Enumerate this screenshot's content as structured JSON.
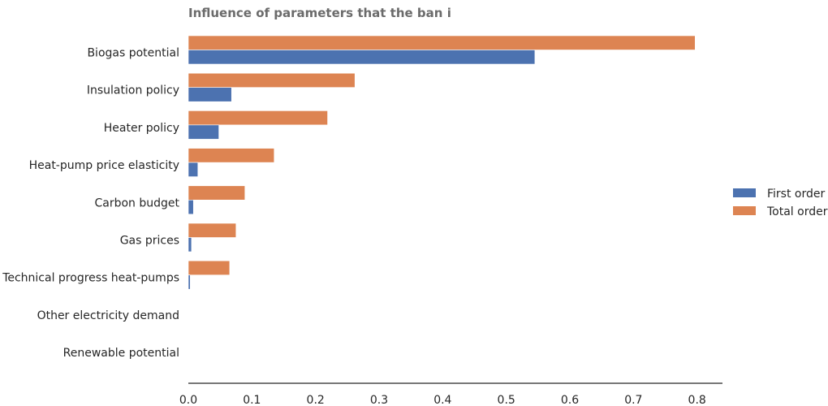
{
  "chart_data": {
    "type": "bar",
    "orientation": "horizontal",
    "title": "Influence of parameters that the ban i",
    "xlabel": "",
    "ylabel": "",
    "xlim": [
      0,
      0.84
    ],
    "xticks": [
      "0.0",
      "0.1",
      "0.2",
      "0.3",
      "0.4",
      "0.5",
      "0.6",
      "0.7",
      "0.8"
    ],
    "grid": false,
    "legend_position": "right",
    "categories": [
      "Biogas potential",
      "Insulation policy",
      "Heater policy",
      "Heat-pump price elasticity",
      "Carbon budget",
      "Gas prices",
      "Technical progress heat-pumps",
      "Other electricity demand",
      "Renewable potential"
    ],
    "series": [
      {
        "name": "First order",
        "color": "#4c72b0",
        "values": [
          0.545,
          0.068,
          0.048,
          0.015,
          0.008,
          0.005,
          0.003,
          0.0,
          0.0
        ]
      },
      {
        "name": "Total order",
        "color": "#dd8452",
        "values": [
          0.797,
          0.262,
          0.219,
          0.135,
          0.089,
          0.075,
          0.065,
          0.0,
          0.0
        ]
      }
    ]
  }
}
